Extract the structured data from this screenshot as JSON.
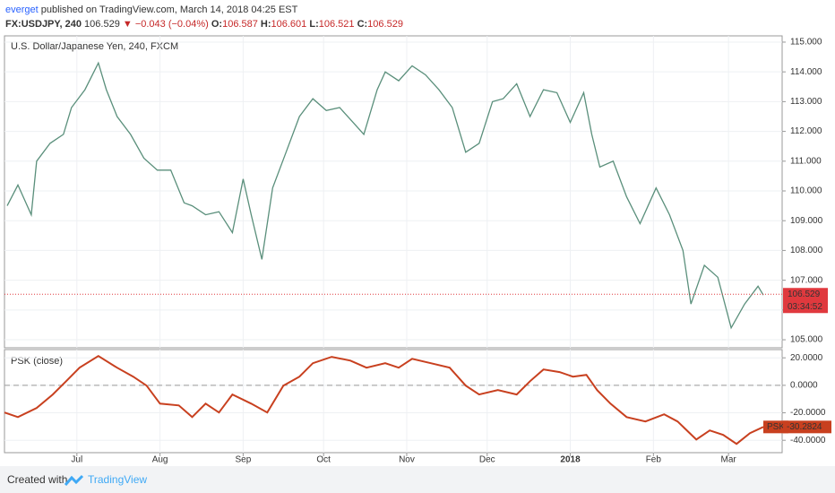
{
  "header": {
    "author": "everget",
    "published": "published on TradingView.com, March 14, 2018 04:25 EST",
    "symbol": "FX:USDJPY, 240",
    "last": "106.529",
    "arrow": "▼",
    "change": "−0.043 (−0.04%)",
    "ohlc": [
      {
        "label": "O:",
        "value": "106.587"
      },
      {
        "label": "H:",
        "value": "106.601"
      },
      {
        "label": "L:",
        "value": "106.521"
      },
      {
        "label": "C:",
        "value": "106.529"
      }
    ]
  },
  "chart_data": [
    {
      "type": "line",
      "title": "U.S. Dollar/Japanese Yen, 240, FXCM",
      "x": [
        4,
        8,
        13,
        15,
        20,
        25,
        28,
        33,
        38,
        41,
        45,
        50,
        55,
        60,
        65,
        70,
        73,
        78,
        83,
        88,
        92,
        95,
        99,
        103,
        108,
        113,
        118,
        123,
        128,
        133,
        137,
        142,
        145,
        150,
        155,
        160,
        165,
        170,
        175,
        180,
        185,
        189,
        194,
        199,
        204,
        209,
        214,
        219,
        222,
        225,
        230,
        235,
        240,
        246,
        251,
        256,
        259,
        264,
        269,
        274,
        279,
        284,
        286
      ],
      "series": [
        {
          "color": "#5a8f7b",
          "values": [
            109.5,
            110.2,
            109.2,
            111.0,
            111.6,
            111.9,
            112.8,
            113.4,
            114.3,
            113.4,
            112.5,
            111.9,
            111.1,
            110.7,
            110.7,
            109.6,
            109.5,
            109.2,
            109.3,
            108.6,
            110.4,
            109.2,
            107.7,
            110.1,
            111.3,
            112.5,
            113.1,
            112.7,
            112.8,
            112.3,
            111.9,
            113.4,
            114.0,
            113.7,
            114.2,
            113.9,
            113.4,
            112.8,
            111.3,
            111.6,
            113.0,
            113.1,
            113.6,
            112.5,
            113.4,
            113.3,
            112.3,
            113.3,
            111.9,
            110.8,
            111.0,
            109.8,
            108.9,
            110.1,
            109.2,
            108.0,
            106.2,
            107.5,
            107.1,
            105.4,
            106.2,
            106.8,
            106.5
          ]
        }
      ],
      "xlim": [
        3,
        293
      ],
      "ylim": [
        104.73,
        115.21
      ],
      "yticks": [
        {
          "value": 105,
          "label": "105.000"
        },
        {
          "value": 106,
          "label": "106.000"
        },
        {
          "value": 107,
          "label": "107.000"
        },
        {
          "value": 108,
          "label": "108.000"
        },
        {
          "value": 109,
          "label": "109.000"
        },
        {
          "value": 110,
          "label": "110.000"
        },
        {
          "value": 111,
          "label": "111.000"
        },
        {
          "value": 112,
          "label": "112.000"
        },
        {
          "value": 113,
          "label": "113.000"
        },
        {
          "value": 114,
          "label": "114.000"
        },
        {
          "value": 115,
          "label": "115.000"
        }
      ],
      "last_price": 106.529,
      "last_price_label": "106.529",
      "countdown": "03:34:52",
      "last_color": "#e0393e",
      "grid": true
    },
    {
      "type": "line",
      "title": "PSK (close)",
      "x": [
        3,
        8,
        15,
        21,
        26,
        31,
        38,
        45,
        51,
        56,
        61,
        68,
        73,
        78,
        83,
        88,
        95,
        101,
        107,
        113,
        118,
        125,
        132,
        138,
        145,
        150,
        155,
        162,
        169,
        175,
        180,
        187,
        194,
        199,
        204,
        210,
        215,
        220,
        224,
        229,
        235,
        242,
        249,
        254,
        261,
        266,
        271,
        276,
        281,
        286
      ],
      "series": [
        {
          "name": "PSK",
          "color": "#c8401f",
          "values": [
            -19.8,
            -23.1,
            -16.5,
            -6.7,
            3.0,
            12.8,
            21.3,
            12.8,
            6.3,
            -0.2,
            -13.3,
            -14.6,
            -23.1,
            -13.3,
            -19.8,
            -6.7,
            -13.3,
            -19.8,
            -0.2,
            6.3,
            16.1,
            20.7,
            18.0,
            12.8,
            16.1,
            12.8,
            19.3,
            16.1,
            12.8,
            -0.2,
            -6.7,
            -3.5,
            -6.7,
            3.0,
            11.5,
            9.6,
            6.3,
            7.6,
            -3.5,
            -13.3,
            -23.1,
            -26.3,
            -21.1,
            -26.3,
            -39.4,
            -32.8,
            -36.1,
            -42.6,
            -34.8,
            -30.3
          ],
          "last_label": "-30.2824"
        }
      ],
      "xlim": [
        3,
        293
      ],
      "ylim": [
        -49,
        26
      ],
      "yticks": [
        {
          "value": 20,
          "label": "20.0000"
        },
        {
          "value": 0,
          "label": "0.0000"
        },
        {
          "value": -20,
          "label": "-20.0000"
        },
        {
          "value": -40,
          "label": "-40.0000"
        }
      ],
      "hline": 0,
      "xticks": [
        {
          "value": 30,
          "label": "Jul"
        },
        {
          "value": 61,
          "label": "Aug"
        },
        {
          "value": 92,
          "label": "Sep"
        },
        {
          "value": 122,
          "label": "Oct"
        },
        {
          "value": 153,
          "label": "Nov"
        },
        {
          "value": 183,
          "label": "Dec"
        },
        {
          "value": 214,
          "label": "2018"
        },
        {
          "value": 245,
          "label": "Feb"
        },
        {
          "value": 273,
          "label": "Mar"
        }
      ],
      "grid": true
    }
  ],
  "footer": {
    "created": "Created with",
    "brand": "TradingView"
  }
}
